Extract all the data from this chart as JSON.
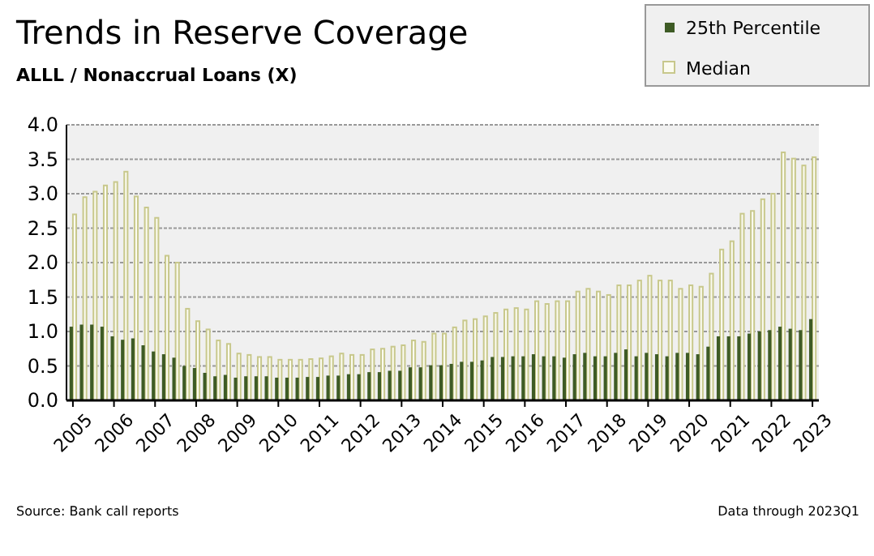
{
  "chart_data": {
    "type": "bar",
    "title": "Trends in Reserve Coverage",
    "subtitle": "ALLL / Nonaccrual Loans (X)",
    "categories": [
      "2005",
      null,
      null,
      null,
      "2006",
      null,
      null,
      null,
      "2007",
      null,
      null,
      null,
      "2008",
      null,
      null,
      null,
      "2009",
      null,
      null,
      null,
      "2010",
      null,
      null,
      null,
      "2011",
      null,
      null,
      null,
      "2012",
      null,
      null,
      null,
      "2013",
      null,
      null,
      null,
      "2014",
      null,
      null,
      null,
      "2015",
      null,
      null,
      null,
      "2016",
      null,
      null,
      null,
      "2017",
      null,
      null,
      null,
      "2018",
      null,
      null,
      null,
      "2019",
      null,
      null,
      null,
      "2020",
      null,
      null,
      null,
      "2021",
      null,
      null,
      null,
      "2022",
      null,
      null,
      null,
      "2023"
    ],
    "series": [
      {
        "name": "25th Percentile",
        "color": "#3e5b25",
        "values": [
          1.07,
          1.1,
          1.1,
          1.07,
          0.93,
          0.88,
          0.9,
          0.8,
          0.71,
          0.67,
          0.62,
          0.5,
          0.47,
          0.4,
          0.35,
          0.37,
          0.33,
          0.35,
          0.35,
          0.35,
          0.33,
          0.33,
          0.33,
          0.34,
          0.34,
          0.36,
          0.36,
          0.38,
          0.38,
          0.41,
          0.41,
          0.43,
          0.43,
          0.48,
          0.48,
          0.51,
          0.51,
          0.53,
          0.56,
          0.56,
          0.58,
          0.63,
          0.63,
          0.64,
          0.64,
          0.67,
          0.64,
          0.64,
          0.62,
          0.67,
          0.69,
          0.64,
          0.64,
          0.69,
          0.74,
          0.64,
          0.69,
          0.67,
          0.64,
          0.69,
          0.69,
          0.67,
          0.78,
          0.93,
          0.93,
          0.93,
          0.97,
          1.0,
          1.02,
          1.07,
          1.04,
          1.02,
          1.18
        ]
      },
      {
        "name": "Median",
        "color": "#c8c88c",
        "values": [
          2.7,
          2.95,
          3.03,
          3.12,
          3.17,
          3.32,
          2.96,
          2.8,
          2.65,
          2.1,
          2.0,
          1.33,
          1.15,
          1.03,
          0.87,
          0.82,
          0.68,
          0.66,
          0.63,
          0.63,
          0.59,
          0.59,
          0.59,
          0.6,
          0.61,
          0.64,
          0.68,
          0.66,
          0.66,
          0.74,
          0.75,
          0.78,
          0.8,
          0.87,
          0.85,
          0.97,
          0.97,
          1.06,
          1.16,
          1.18,
          1.22,
          1.27,
          1.32,
          1.34,
          1.32,
          1.44,
          1.4,
          1.44,
          1.44,
          1.58,
          1.62,
          1.58,
          1.53,
          1.67,
          1.67,
          1.74,
          1.81,
          1.74,
          1.74,
          1.62,
          1.67,
          1.65,
          1.84,
          2.19,
          2.31,
          2.71,
          2.75,
          2.92,
          3.0,
          3.6,
          3.51,
          3.41,
          3.53
        ]
      }
    ],
    "ylim": [
      0,
      4
    ],
    "yticks": [
      {
        "value": 0,
        "label": "0.0"
      },
      {
        "value": 0.5,
        "label": "0.5"
      },
      {
        "value": 1,
        "label": "1.0"
      },
      {
        "value": 1.5,
        "label": "1.5"
      },
      {
        "value": 2,
        "label": "2.0"
      },
      {
        "value": 2.5,
        "label": "2.5"
      },
      {
        "value": 3,
        "label": "3.0"
      },
      {
        "value": 3.5,
        "label": "3.5"
      },
      {
        "value": 4,
        "label": "4.0"
      }
    ],
    "grid": "y",
    "legend": "top right",
    "annotations": [
      "Source: Bank call reports",
      "Data through 2023Q1"
    ]
  }
}
